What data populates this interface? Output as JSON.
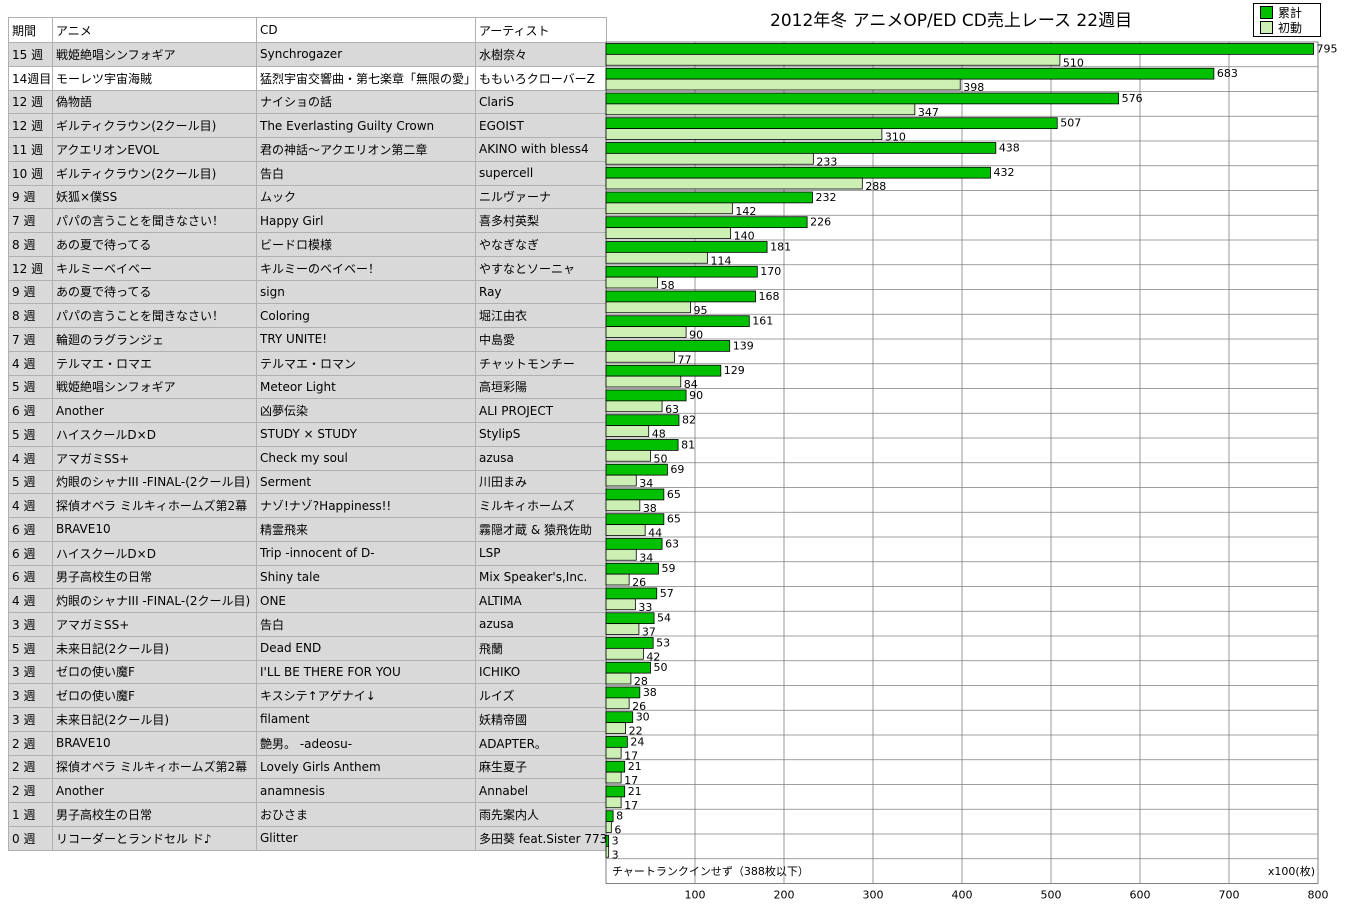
{
  "table": {
    "headers": [
      "期間",
      "アニメ",
      "CD",
      "アーティスト"
    ],
    "rows": [
      [
        "15 週",
        "戦姫絶唱シンフォギア",
        "Synchrogazer",
        "水樹奈々"
      ],
      [
        "14週目",
        "モーレツ宇宙海賊",
        "猛烈宇宙交響曲・第七楽章「無限の愛」",
        "ももいろクローバーZ"
      ],
      [
        "12 週",
        "偽物語",
        "ナイショの話",
        "ClariS"
      ],
      [
        "12 週",
        "ギルティクラウン(2クール目)",
        "The Everlasting Guilty Crown",
        "EGOIST"
      ],
      [
        "11 週",
        "アクエリオンEVOL",
        "君の神話～アクエリオン第二章",
        "AKINO with bless4"
      ],
      [
        "10 週",
        "ギルティクラウン(2クール目)",
        "告白",
        "supercell"
      ],
      [
        "9 週",
        "妖狐×僕SS",
        "ムック",
        "ニルヴァーナ"
      ],
      [
        "7 週",
        "パパの言うことを聞きなさい！",
        "Happy Girl",
        "喜多村英梨"
      ],
      [
        "8 週",
        "あの夏で待ってる",
        "ビードロ模様",
        "やなぎなぎ"
      ],
      [
        "12 週",
        "キルミーベイベー",
        "キルミーのベイベー！",
        "やすなとソーニャ"
      ],
      [
        "9 週",
        "あの夏で待ってる",
        "sign",
        "Ray"
      ],
      [
        "8 週",
        "パパの言うことを聞きなさい！",
        "Coloring",
        "堀江由衣"
      ],
      [
        "7 週",
        "輪廻のラグランジェ",
        "TRY UNITE!",
        "中島愛"
      ],
      [
        "4 週",
        "テルマエ・ロマエ",
        "テルマエ・ロマン",
        "チャットモンチー"
      ],
      [
        "5 週",
        "戦姫絶唱シンフォギア",
        "Meteor Light",
        "高垣彩陽"
      ],
      [
        "6 週",
        "Another",
        "凶夢伝染",
        "ALI PROJECT"
      ],
      [
        "5 週",
        "ハイスクールD×D",
        "STUDY × STUDY",
        "StylipS"
      ],
      [
        "4 週",
        "アマガミSS+",
        "Check my soul",
        "azusa"
      ],
      [
        "5 週",
        "灼眼のシャナIII -FINAL-(2クール目)",
        "Serment",
        "川田まみ"
      ],
      [
        "4 週",
        "探偵オペラ ミルキィホームズ第2幕",
        "ナゾ!ナゾ?Happiness!!",
        "ミルキィホームズ"
      ],
      [
        "6 週",
        "BRAVE10",
        "精霊飛来",
        "霧隠才蔵 & 猿飛佐助"
      ],
      [
        "6 週",
        "ハイスクールD×D",
        "Trip -innocent of D-",
        "LSP"
      ],
      [
        "6 週",
        "男子高校生の日常",
        "Shiny tale",
        "Mix Speaker's,Inc."
      ],
      [
        "4 週",
        "灼眼のシャナIII -FINAL-(2クール目)",
        "ONE",
        "ALTIMA"
      ],
      [
        "3 週",
        "アマガミSS+",
        "告白",
        "azusa"
      ],
      [
        "5 週",
        "未来日記(2クール目)",
        "Dead END",
        "飛蘭"
      ],
      [
        "3 週",
        "ゼロの使い魔F",
        "I'LL BE THERE FOR YOU",
        "ICHIKO"
      ],
      [
        "3 週",
        "ゼロの使い魔F",
        "キスシテ↑アゲナイ↓",
        "ルイズ"
      ],
      [
        "3 週",
        "未来日記(2クール目)",
        "filament",
        "妖精帝國"
      ],
      [
        "2 週",
        "BRAVE10",
        "艶男。 -adeosu-",
        "ADAPTER。"
      ],
      [
        "2 週",
        "探偵オペラ ミルキィホームズ第2幕",
        "Lovely Girls Anthem",
        "麻生夏子"
      ],
      [
        "2 週",
        "Another",
        "anamnesis",
        "Annabel"
      ],
      [
        "1 週",
        "男子高校生の日常",
        "おひさま",
        "雨先案内人"
      ],
      [
        "0 週",
        "リコーダーとランドセル ド♪",
        "Glitter",
        "多田葵 feat.Sister 773"
      ]
    ]
  },
  "chart_data": {
    "type": "bar",
    "orientation": "horizontal",
    "title": "2012年冬 アニメOP/ED CD売上レース 22週目",
    "unit_label": "x100(枚)",
    "note": "チャートランクインせず（388枚以下）",
    "xlim": [
      0,
      800
    ],
    "xticks": [
      100,
      200,
      300,
      400,
      500,
      600,
      700,
      800
    ],
    "grid": true,
    "legend_position": "top-right",
    "series": [
      {
        "name": "累計",
        "color": "#00c000",
        "values": [
          795,
          683,
          576,
          507,
          438,
          432,
          232,
          226,
          181,
          170,
          168,
          161,
          139,
          129,
          90,
          82,
          81,
          69,
          65,
          65,
          63,
          59,
          57,
          54,
          53,
          50,
          38,
          30,
          24,
          21,
          21,
          8,
          3
        ]
      },
      {
        "name": "初動",
        "color": "#ccf0b4",
        "values": [
          510,
          398,
          347,
          310,
          233,
          288,
          142,
          140,
          114,
          58,
          95,
          90,
          77,
          84,
          63,
          48,
          50,
          34,
          38,
          44,
          34,
          26,
          33,
          37,
          42,
          28,
          26,
          22,
          17,
          17,
          17,
          6,
          3
        ]
      }
    ]
  },
  "colors": {
    "row_bg": "#d9d9d9",
    "highlight_row_bg": "#ffffff",
    "cumulative_bar": "#00c000",
    "first_week_bar": "#ccf0b4",
    "gridline": "#808080"
  }
}
